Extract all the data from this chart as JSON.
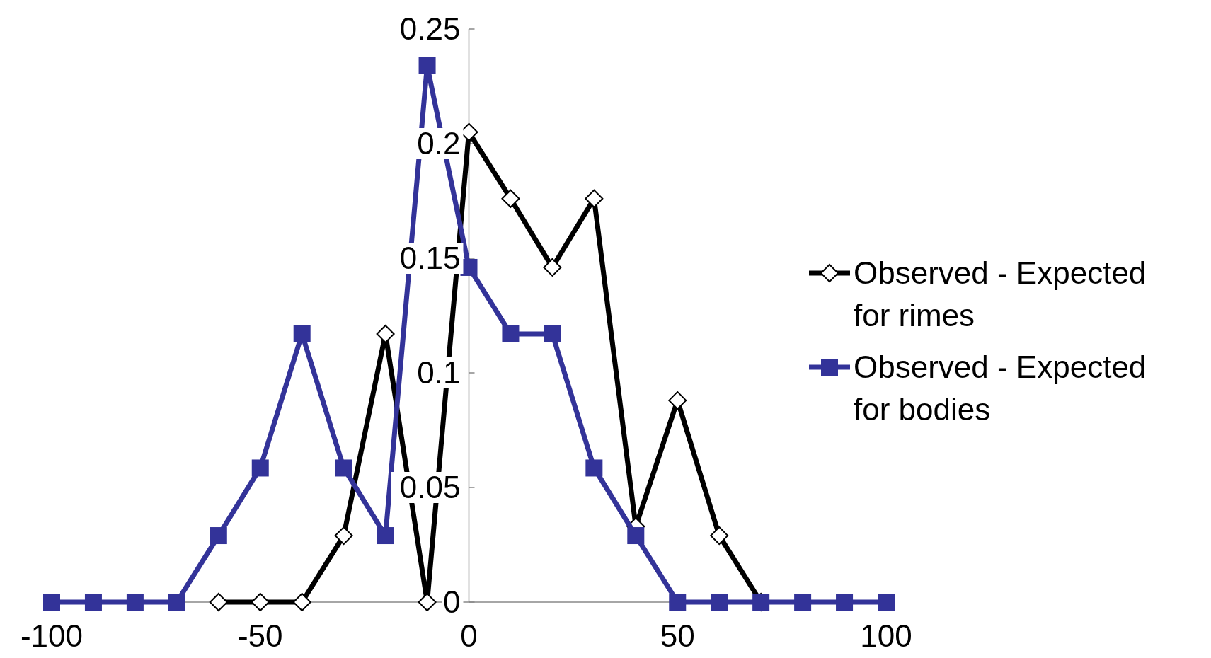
{
  "chart_data": {
    "type": "line",
    "x": [
      -100,
      -90,
      -80,
      -70,
      -60,
      -50,
      -40,
      -30,
      -20,
      -10,
      0,
      10,
      20,
      30,
      40,
      50,
      60,
      70,
      80,
      90,
      100
    ],
    "xlim": [
      -100,
      100
    ],
    "xticks": [
      -100,
      -50,
      0,
      50,
      100
    ],
    "ylim": [
      0,
      0.25
    ],
    "yticks": [
      0,
      0.05,
      0.1,
      0.15,
      0.2,
      0.25
    ],
    "grid": false,
    "legend": "right",
    "line_style": "solid",
    "series": [
      {
        "name": "Observed - Expected for rimes",
        "color": "#000000",
        "marker": "diamond",
        "values": [
          null,
          null,
          null,
          null,
          0,
          0,
          0,
          0.029,
          0.117,
          0,
          0.205,
          0.176,
          0.146,
          0.176,
          0.033,
          0.088,
          0.029,
          0,
          null,
          null,
          null
        ]
      },
      {
        "name": "Observed - Expected for bodies",
        "color": "#333399",
        "marker": "square",
        "values": [
          0,
          0,
          0,
          0,
          0.029,
          0.0585,
          0.117,
          0.0585,
          0.029,
          0.234,
          0.146,
          0.117,
          0.117,
          0.0585,
          0.029,
          0,
          0,
          0,
          0,
          0,
          0
        ]
      }
    ]
  }
}
